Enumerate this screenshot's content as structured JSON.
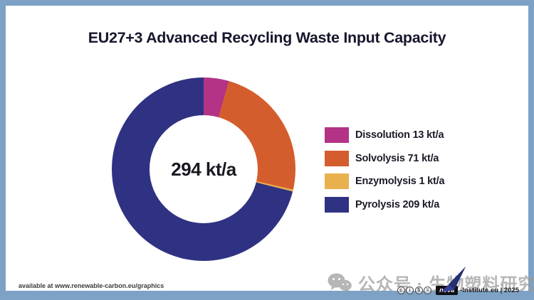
{
  "title": "EU27+3 Advanced Recycling Waste Input Capacity",
  "chart_data": {
    "type": "pie",
    "subtype": "donut",
    "title": "EU27+3 Advanced Recycling Waste Input Capacity",
    "center_label": "294 kt/a",
    "total": 294,
    "unit": "kt/a",
    "start_angle_deg": 0,
    "direction": "clockwise",
    "legend_position": "right",
    "series": [
      {
        "name": "Dissolution",
        "value": 13,
        "color": "#b33387",
        "label": "Dissolution 13 kt/a"
      },
      {
        "name": "Solvolysis",
        "value": 71,
        "color": "#d45d2e",
        "label": "Solvolysis 71 kt/a"
      },
      {
        "name": "Enzymolysis",
        "value": 1,
        "color": "#e9b14e",
        "label": "Enzymolysis 1 kt/a"
      },
      {
        "name": "Pyrolysis",
        "value": 209,
        "color": "#2f3282",
        "label": "Pyrolysis 209 kt/a"
      }
    ]
  },
  "footer": {
    "left_text": "available at www.renewable-carbon.eu/graphics",
    "license_icons": [
      "cc",
      "by",
      "nc",
      "nd"
    ],
    "credit_logo_text": "nova",
    "credit_text": "-Institute.eu | 2025"
  },
  "watermark": {
    "icon": "wechat-icon",
    "text": "公众号 · 生物塑料研究院"
  },
  "colors": {
    "frame": "#7da2c6",
    "card_bg": "#ffffff",
    "title_text": "#16162c",
    "center_text": "#191922",
    "watermark": "#9a9a9a"
  }
}
